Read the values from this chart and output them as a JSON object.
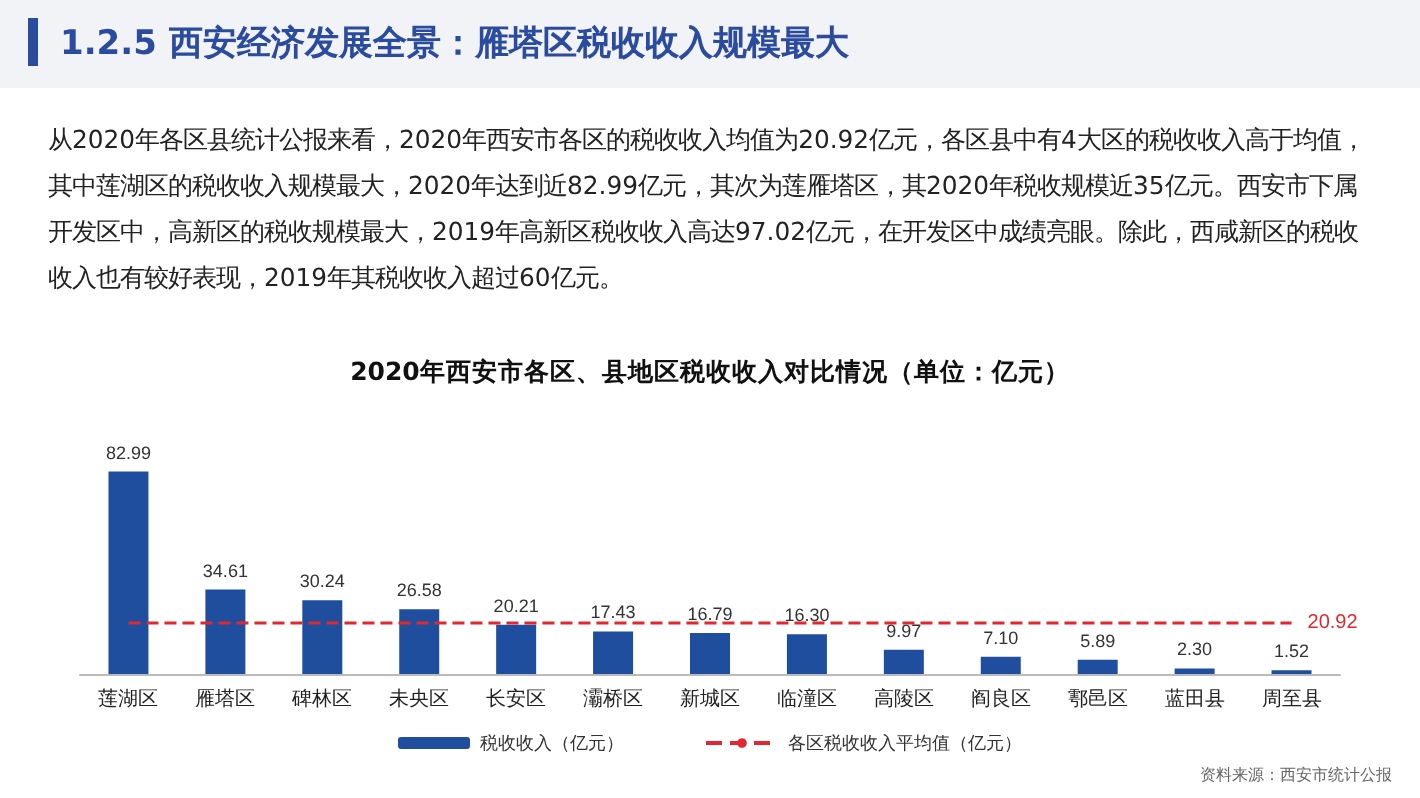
{
  "chart_data": {
    "type": "bar",
    "title": "1.2.5 西安经济发展全景：雁塔区税收收入规模最大",
    "subtitle": "2020年西安市各区、县地区税收收入对比情况（单位：亿元）",
    "annotations": [
      "从2020年各区县统计公报来看，2020年西安市各区的税收收入均值为20.92亿元，各区县中有4大区的税收收入高于均值，其中莲湖区的税收收入规模最大，2020年达到近82.99亿元，其次为莲雁塔区，其2020年税收规模近35亿元。西安市下属开发区中，高新区的税收规模最大，2019年高新区税收收入高达97.02亿元，在开发区中成绩亮眼。除此，西咸新区的税收收入也有较好表现，2019年其税收收入超过60亿元。",
      "资料来源：西安市统计公报"
    ],
    "categories": [
      "莲湖区",
      "雁塔区",
      "碑林区",
      "未央区",
      "长安区",
      "灞桥区",
      "新城区",
      "临潼区",
      "高陵区",
      "阎良区",
      "鄠邑区",
      "蓝田县",
      "周至县"
    ],
    "series": [
      {
        "name": "税收收入（亿元）",
        "color": "#1f4e9e",
        "values": [
          82.99,
          34.61,
          30.24,
          26.58,
          20.21,
          17.43,
          16.79,
          16.3,
          9.97,
          7.1,
          5.89,
          2.3,
          1.52
        ],
        "value_labels": [
          "82.99",
          "34.61",
          "30.24",
          "26.58",
          "20.21",
          "17.43",
          "16.79",
          "16.30",
          "9.97",
          "7.10",
          "5.89",
          "2.30",
          "1.52"
        ]
      },
      {
        "name": "各区税收收入平均值（亿元）",
        "type": "line",
        "color": "#e0282e",
        "line_style": "dashed",
        "marker": "none",
        "values": [
          20.92,
          20.92,
          20.92,
          20.92,
          20.92,
          20.92,
          20.92,
          20.92,
          20.92,
          20.92,
          20.92,
          20.92,
          20.92
        ],
        "value_labels": [
          null,
          null,
          null,
          null,
          null,
          null,
          null,
          null,
          null,
          null,
          null,
          null,
          "20.92"
        ]
      }
    ],
    "legend": "bottom",
    "grid": false
  }
}
